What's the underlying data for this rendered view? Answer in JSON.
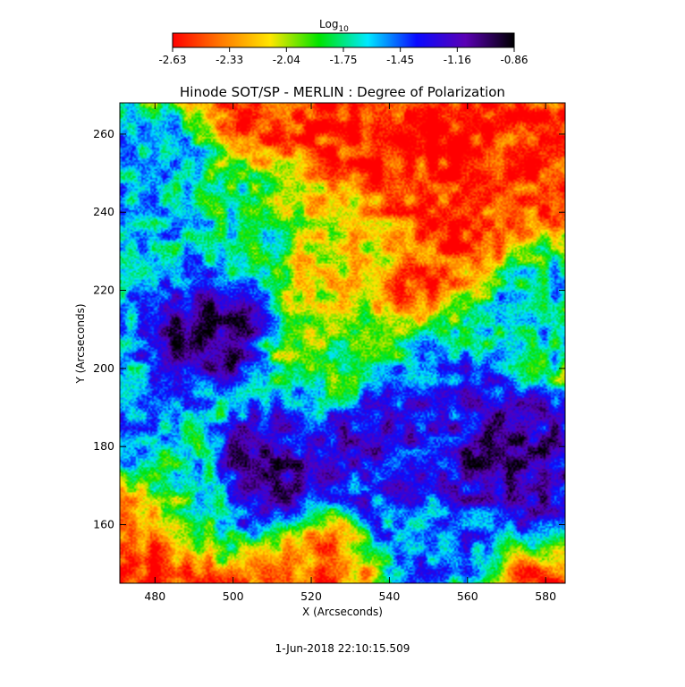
{
  "chart_data": {
    "type": "heatmap",
    "title": "Hinode SOT/SP - MERLIN : Degree of Polarization",
    "xlabel": "X (Arcseconds)",
    "ylabel": "Y (Arcseconds)",
    "xlim": [
      471,
      585
    ],
    "ylim": [
      145,
      268
    ],
    "xticks": [
      480,
      500,
      520,
      540,
      560,
      580
    ],
    "yticks": [
      160,
      180,
      200,
      220,
      240,
      260
    ],
    "colorbar": {
      "label_base": "Log",
      "label_sub": "10",
      "range": [
        -2.63,
        -0.86
      ],
      "ticks": [
        "-2.63",
        "-2.33",
        "-2.04",
        "-1.75",
        "-1.45",
        "-1.16",
        "-0.86"
      ],
      "colormap": [
        "#ff0000",
        "#ff7a00",
        "#ffe600",
        "#00e400",
        "#00e8ff",
        "#0a0aff",
        "#5a00b4",
        "#000000"
      ]
    },
    "regions": [
      {
        "x": 491,
        "y": 211,
        "value": -0.95
      },
      {
        "x": 510,
        "y": 171,
        "value": -0.95
      },
      {
        "x": 537,
        "y": 181,
        "value": -1.05
      },
      {
        "x": 566,
        "y": 178,
        "value": -1.0
      },
      {
        "x": 578,
        "y": 175,
        "value": -1.15
      },
      {
        "x": 520,
        "y": 183,
        "value": -1.3
      },
      {
        "x": 540,
        "y": 170,
        "value": -1.4
      },
      {
        "x": 555,
        "y": 190,
        "value": -1.35
      },
      {
        "x": 550,
        "y": 160,
        "value": -1.45
      },
      {
        "x": 480,
        "y": 225,
        "value": -1.6
      },
      {
        "x": 476,
        "y": 250,
        "value": -1.55
      },
      {
        "x": 500,
        "y": 233,
        "value": -1.7
      },
      {
        "x": 575,
        "y": 215,
        "value": -1.6
      },
      {
        "x": 476,
        "y": 190,
        "value": -1.5
      },
      {
        "x": 490,
        "y": 165,
        "value": -1.7
      },
      {
        "x": 525,
        "y": 200,
        "value": -1.9
      },
      {
        "x": 525,
        "y": 235,
        "value": -2.1
      },
      {
        "x": 560,
        "y": 235,
        "value": -2.5
      },
      {
        "x": 540,
        "y": 255,
        "value": -2.55
      },
      {
        "x": 480,
        "y": 152,
        "value": -2.55
      },
      {
        "x": 520,
        "y": 152,
        "value": -2.4
      }
    ]
  },
  "footer": {
    "timestamp": "1-Jun-2018 22:10:15.509"
  }
}
